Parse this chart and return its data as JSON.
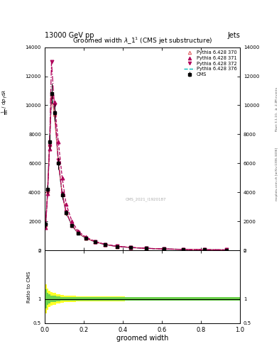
{
  "title": "Groomed width $\\lambda\\_1^1$ (CMS jet substructure)",
  "header_left": "13000 GeV pp",
  "header_right": "Jets",
  "side_label": "mcplots.cern.ch [arXiv:1306.3436]",
  "rivet_label": "Rivet 3.1.10, $\\geq$ 2.2M events",
  "watermark": "CMS_2021_I1920187",
  "xlabel": "groomed width",
  "ylabel_lines": [
    "mathrm d$^2$N",
    "mathrm d $p_{T}$ mathrm d $\\lambda$"
  ],
  "ylim_main": [
    0,
    14000
  ],
  "ylim_ratio": [
    0.5,
    2.0
  ],
  "x_data": [
    0.005,
    0.015,
    0.025,
    0.035,
    0.05,
    0.07,
    0.09,
    0.11,
    0.14,
    0.17,
    0.21,
    0.26,
    0.31,
    0.37,
    0.44,
    0.52,
    0.61,
    0.71,
    0.82,
    0.93
  ],
  "cms_y": [
    1800,
    4200,
    7500,
    10800,
    9500,
    6000,
    3800,
    2600,
    1700,
    1200,
    850,
    580,
    400,
    280,
    200,
    145,
    100,
    72,
    52,
    38
  ],
  "cms_yerr": [
    200,
    300,
    500,
    700,
    600,
    400,
    280,
    200,
    130,
    95,
    70,
    50,
    35,
    26,
    20,
    16,
    13,
    11,
    9,
    7
  ],
  "py370_y": [
    1750,
    4100,
    7300,
    10600,
    9400,
    6100,
    3850,
    2620,
    1720,
    1210,
    855,
    582,
    402,
    282,
    202,
    147,
    102,
    73,
    53,
    39
  ],
  "py371_y": [
    1600,
    3900,
    7000,
    10800,
    10200,
    7500,
    5000,
    3200,
    2000,
    1350,
    920,
    620,
    425,
    295,
    208,
    150,
    103,
    74,
    54,
    40
  ],
  "py372_y": [
    1700,
    4050,
    7200,
    13000,
    10000,
    6200,
    3900,
    2650,
    1730,
    1215,
    858,
    584,
    403,
    283,
    203,
    148,
    103,
    74,
    54,
    39
  ],
  "py376_y": [
    1750,
    4100,
    7350,
    10700,
    9500,
    6050,
    3820,
    2600,
    1700,
    1200,
    848,
    578,
    399,
    280,
    200,
    145,
    100,
    72,
    52,
    38
  ],
  "ratio_x": [
    0.005,
    0.015,
    0.025,
    0.035,
    0.05,
    0.07,
    0.09,
    0.11,
    0.14,
    0.17,
    0.21,
    0.26,
    0.31,
    0.37,
    0.44,
    0.52,
    0.61,
    0.71,
    0.82,
    0.93
  ],
  "ratio_xlo": [
    0.0,
    0.01,
    0.02,
    0.03,
    0.04,
    0.06,
    0.08,
    0.1,
    0.12,
    0.16,
    0.2,
    0.24,
    0.29,
    0.34,
    0.41,
    0.48,
    0.57,
    0.66,
    0.77,
    0.88
  ],
  "ratio_xhi": [
    0.01,
    0.02,
    0.03,
    0.04,
    0.06,
    0.08,
    0.1,
    0.12,
    0.16,
    0.2,
    0.24,
    0.29,
    0.34,
    0.41,
    0.48,
    0.57,
    0.66,
    0.77,
    0.88,
    1.0
  ],
  "ratio_green_lo": [
    0.8,
    0.88,
    0.91,
    0.93,
    0.94,
    0.95,
    0.96,
    0.97,
    0.97,
    0.97,
    0.97,
    0.97,
    0.97,
    0.97,
    0.97,
    0.97,
    0.97,
    0.97,
    0.97,
    0.97
  ],
  "ratio_green_hi": [
    1.2,
    1.12,
    1.09,
    1.07,
    1.06,
    1.05,
    1.04,
    1.03,
    1.03,
    1.03,
    1.03,
    1.03,
    1.03,
    1.03,
    1.03,
    1.03,
    1.03,
    1.03,
    1.03,
    1.03
  ],
  "ratio_yellow_lo": [
    0.7,
    0.78,
    0.83,
    0.86,
    0.88,
    0.9,
    0.92,
    0.93,
    0.94,
    0.95,
    0.95,
    0.95,
    0.95,
    0.95,
    0.96,
    0.96,
    0.96,
    0.96,
    0.96,
    0.97
  ],
  "ratio_yellow_hi": [
    1.3,
    1.22,
    1.17,
    1.14,
    1.12,
    1.1,
    1.08,
    1.07,
    1.06,
    1.05,
    1.05,
    1.05,
    1.05,
    1.05,
    1.04,
    1.04,
    1.04,
    1.04,
    1.04,
    1.03
  ],
  "color_cms": "#000000",
  "color_370": "#e06060",
  "color_371": "#b0005a",
  "color_372": "#b0005a",
  "color_376": "#00bbbb",
  "yticks_main": [
    0,
    2000,
    4000,
    6000,
    8000,
    10000,
    12000,
    14000
  ],
  "ytick_labels_main": [
    "0",
    "2000",
    "4000",
    "6000",
    "8000",
    "10000",
    "12000",
    "14000"
  ],
  "background_color": "#ffffff"
}
